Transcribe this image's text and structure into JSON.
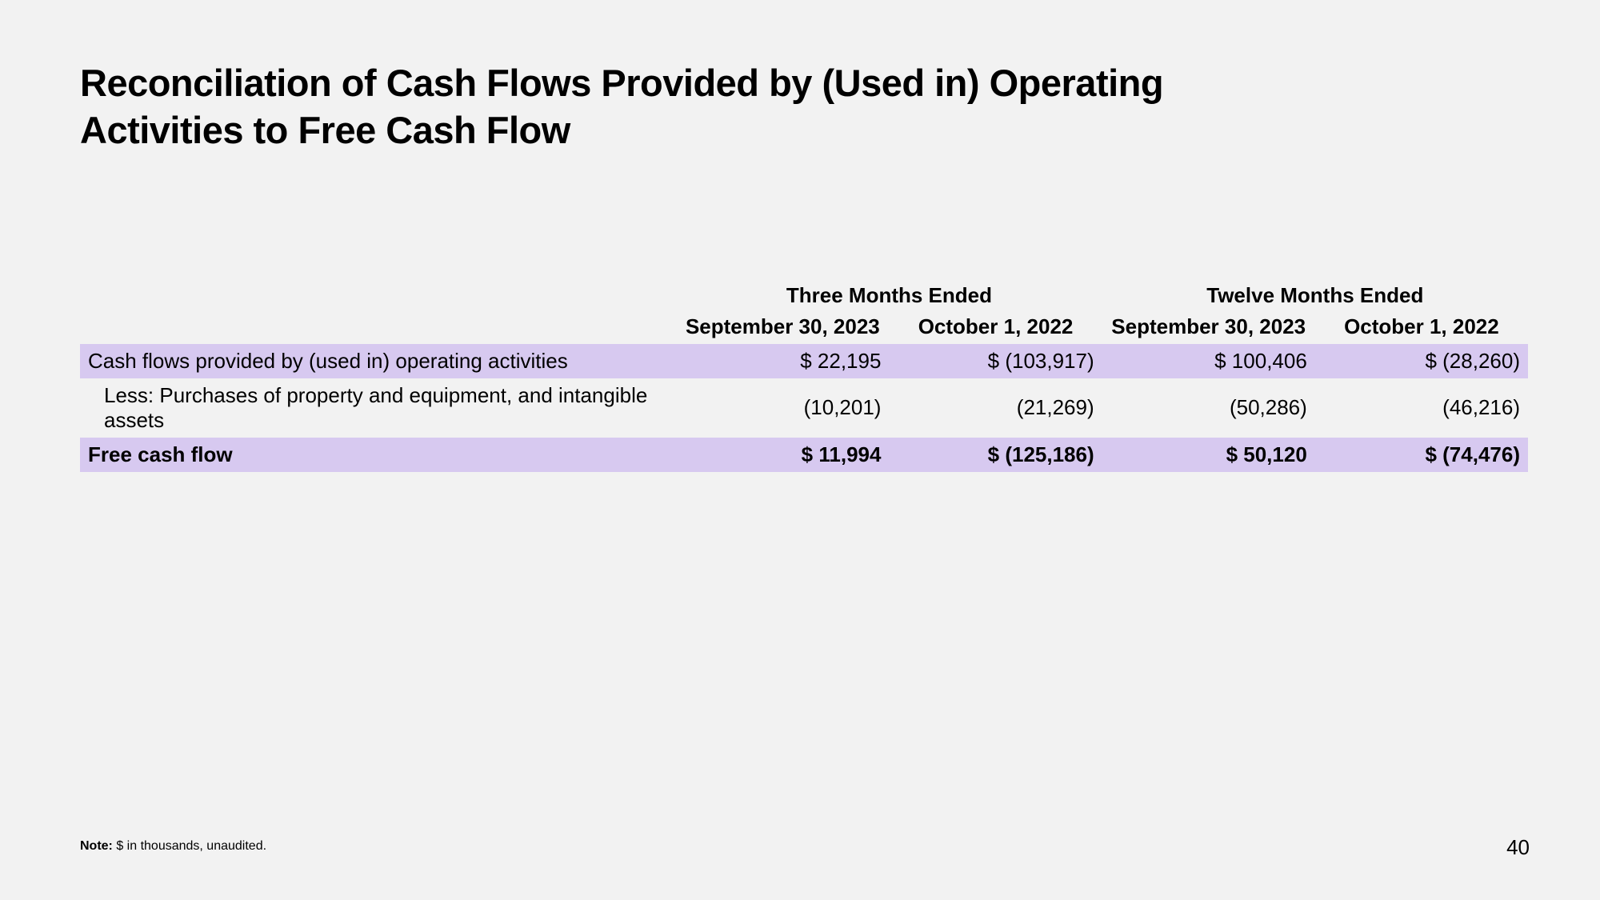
{
  "title": "Reconciliation of Cash Flows Provided by (Used in) Operating Activities to Free Cash Flow",
  "table": {
    "period_headers": [
      "Three Months Ended",
      "Twelve Months Ended"
    ],
    "date_headers": [
      "September 30, 2023",
      "October 1, 2022",
      "September 30, 2023",
      "October 1, 2022"
    ],
    "rows": [
      {
        "label": "Cash flows provided by (used in) operating activities",
        "values": [
          "$ 22,195",
          "$ (103,917)",
          "$ 100,406",
          "$ (28,260)"
        ],
        "highlighted": true,
        "bold": false,
        "indent": false
      },
      {
        "label": "Less: Purchases of property and equipment, and intangible assets",
        "values": [
          "(10,201)",
          "(21,269)",
          "(50,286)",
          "(46,216)"
        ],
        "highlighted": false,
        "bold": false,
        "indent": true
      },
      {
        "label": "Free cash flow",
        "values": [
          "$ 11,994",
          "$ (125,186)",
          "$ 50,120",
          "$ (74,476)"
        ],
        "highlighted": true,
        "bold": true,
        "indent": false
      }
    ]
  },
  "note_label": "Note:",
  "note_text": " $ in thousands, unaudited.",
  "page_number": "40",
  "colors": {
    "background": "#f2f2f2",
    "highlight": "#d7c9f0",
    "text": "#000000"
  }
}
